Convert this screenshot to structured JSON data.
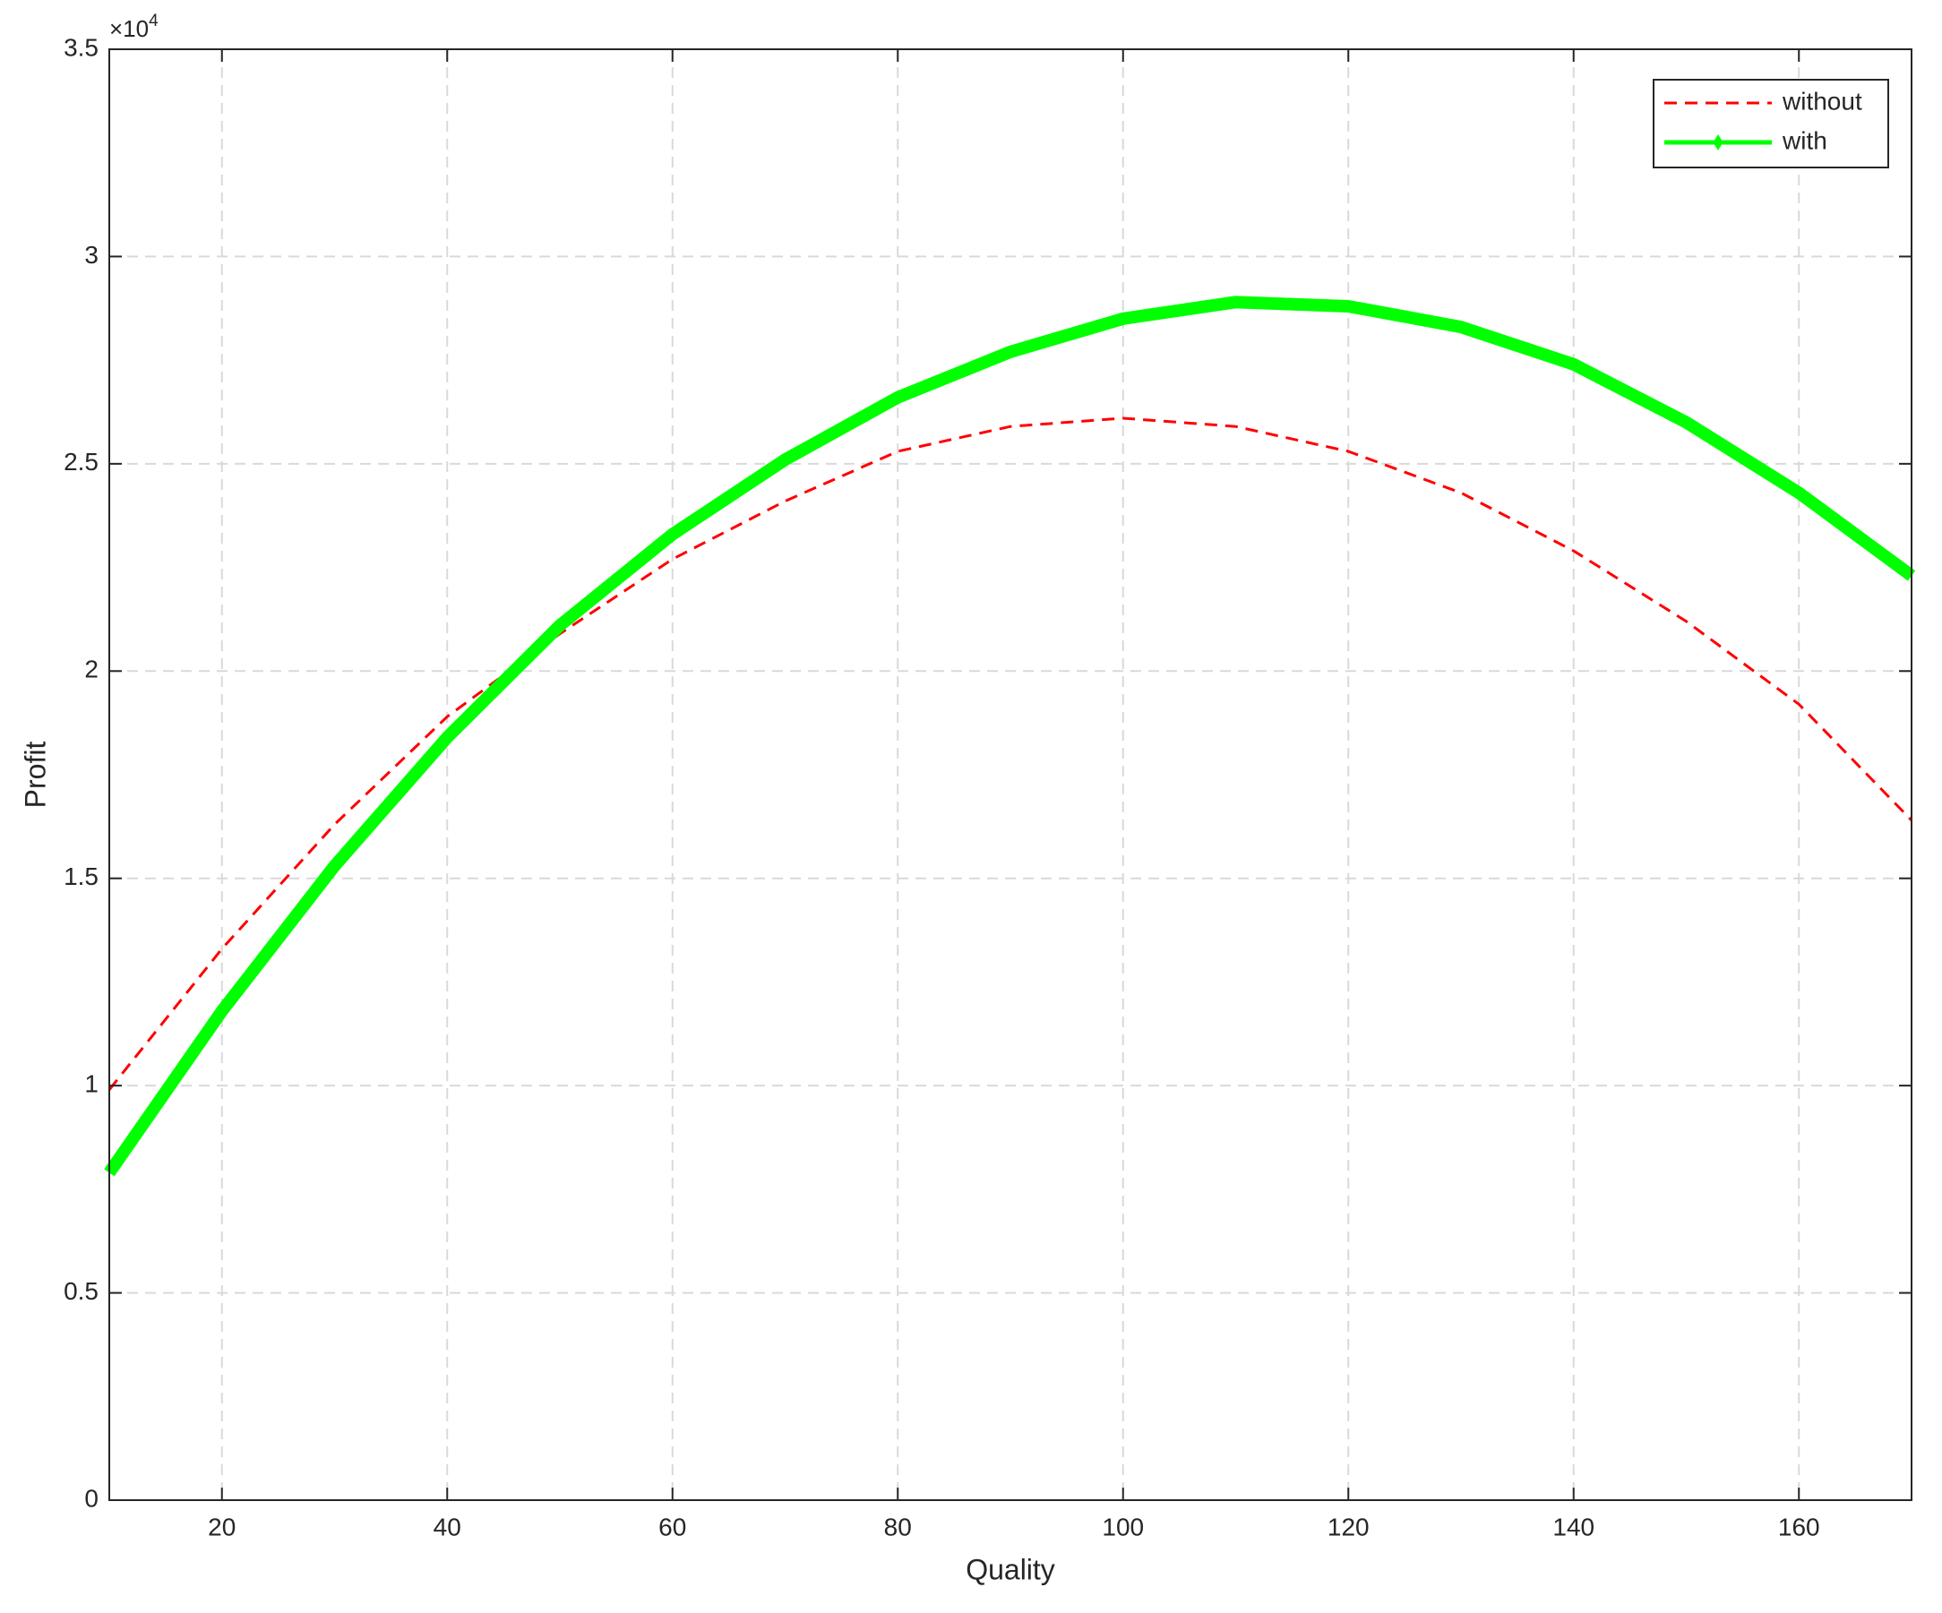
{
  "chart_data": {
    "type": "line",
    "x_label": "Quality",
    "y_label": "Profit",
    "y_multiplier": "×10",
    "y_multiplier_exponent": "4",
    "x": [
      10,
      20,
      30,
      40,
      50,
      60,
      70,
      80,
      90,
      100,
      110,
      120,
      130,
      140,
      150,
      160,
      170
    ],
    "series": [
      {
        "name": "without",
        "color": "#ff0000",
        "dash": true,
        "values": [
          0.99,
          1.33,
          1.63,
          1.89,
          2.09,
          2.27,
          2.41,
          2.53,
          2.59,
          2.61,
          2.59,
          2.53,
          2.43,
          2.29,
          2.12,
          1.92,
          1.64
        ]
      },
      {
        "name": "with",
        "color": "#00ff00",
        "dash": false,
        "values": [
          0.79,
          1.18,
          1.53,
          1.84,
          2.11,
          2.33,
          2.51,
          2.66,
          2.77,
          2.85,
          2.89,
          2.88,
          2.83,
          2.74,
          2.6,
          2.43,
          2.23
        ]
      }
    ],
    "xlim": [
      10,
      170
    ],
    "xticks": [
      20,
      40,
      60,
      80,
      100,
      120,
      140,
      160
    ],
    "ylim": [
      0,
      3.5
    ],
    "yticks": [
      0,
      0.5,
      1,
      1.5,
      2,
      2.5,
      3,
      3.5
    ],
    "grid": true,
    "legend": "top-right"
  }
}
